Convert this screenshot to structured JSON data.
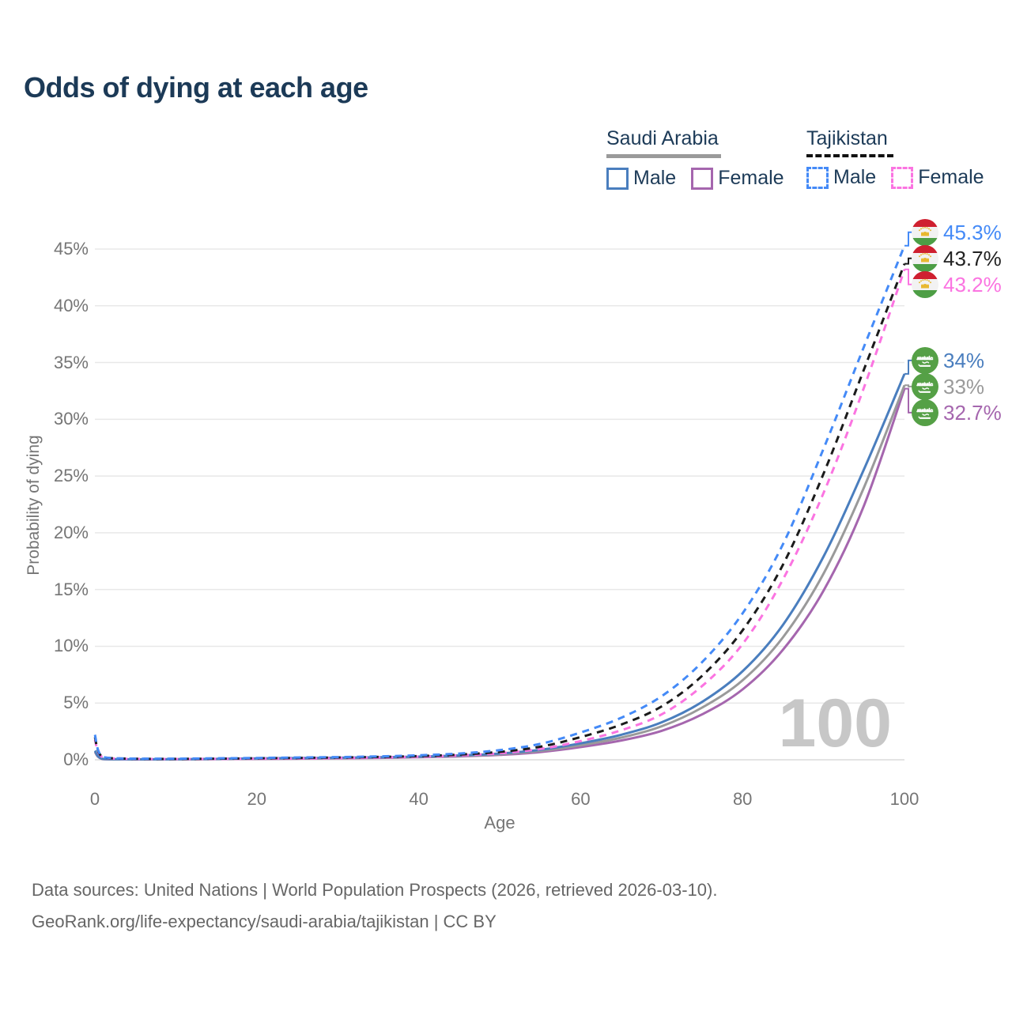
{
  "title": "Odds of dying at each age",
  "watermark_age": "100",
  "legend": {
    "groups": [
      {
        "country": "Saudi Arabia",
        "line_style": "solid",
        "line_color": "#9a9a9a",
        "male_label": "Male",
        "female_label": "Female",
        "male_color": "#4a7ebe",
        "female_color": "#a566ae"
      },
      {
        "country": "Tajikistan",
        "line_style": "dashed",
        "line_color": "#111111",
        "male_label": "Male",
        "female_label": "Female",
        "male_color": "#448af7",
        "female_color": "#fb74e1"
      }
    ]
  },
  "y_axis": {
    "label": "Probability of dying",
    "tick_values": [
      0,
      5,
      10,
      15,
      20,
      25,
      30,
      35,
      40,
      45
    ],
    "tick_suffix": "%"
  },
  "x_axis": {
    "label": "Age",
    "tick_values": [
      0,
      20,
      40,
      60,
      80,
      100
    ]
  },
  "footer": {
    "line1": "Data sources: United Nations | World Population Prospects (2026, retrieved 2026-03-10).",
    "line2": "GeoRank.org/life-expectancy/saudi-arabia/tajikistan | CC BY"
  },
  "colors": {
    "title_navy": "#1c3a57",
    "axis_gray": "#757575",
    "gridline": "#e8e8e8",
    "baseline": "#dcdcdc",
    "watermark_gray": "#c7c7c7",
    "saudi_flag_green": "#55a046",
    "tajik_flag_red": "#cf2030",
    "tajik_flag_green": "#4d9e45",
    "tajik_flag_gold": "#e8b830"
  },
  "chart_data": {
    "type": "line",
    "title": "Odds of dying at each age",
    "xlabel": "Age",
    "ylabel": "Probability of dying",
    "x_range": [
      0,
      100
    ],
    "y_range_percent": [
      0,
      45
    ],
    "grid": "horizontal-only",
    "legend_position": "top-right",
    "ages": [
      0,
      1,
      5,
      10,
      15,
      20,
      25,
      30,
      35,
      40,
      45,
      50,
      55,
      60,
      65,
      70,
      75,
      80,
      85,
      90,
      95,
      100
    ],
    "series": [
      {
        "name": "Tajikistan Male",
        "group": "tajikistan",
        "flag": "tajikistan",
        "color": "#448af7",
        "label_color": "#448af7",
        "dashed": true,
        "end_label": "45.3%",
        "end_value_percent": 45.3,
        "values_percent": [
          2.2,
          0.25,
          0.1,
          0.1,
          0.13,
          0.16,
          0.2,
          0.24,
          0.3,
          0.4,
          0.55,
          0.85,
          1.4,
          2.4,
          3.7,
          5.6,
          8.6,
          12.9,
          19.0,
          27.4,
          36.4,
          45.3
        ]
      },
      {
        "name": "Tajikistan Both sexes",
        "group": "tajikistan",
        "flag": "tajikistan",
        "color": "#1b1b1b",
        "label_color": "#222222",
        "dashed": true,
        "end_label": "43.7%",
        "end_value_percent": 43.7,
        "values_percent": [
          2.0,
          0.22,
          0.09,
          0.08,
          0.1,
          0.13,
          0.16,
          0.2,
          0.25,
          0.33,
          0.46,
          0.7,
          1.15,
          2.0,
          3.1,
          4.7,
          7.4,
          11.4,
          17.2,
          25.2,
          34.4,
          43.7
        ]
      },
      {
        "name": "Tajikistan Female",
        "group": "tajikistan",
        "flag": "tajikistan",
        "color": "#fb74e1",
        "label_color": "#fb74e1",
        "dashed": true,
        "end_label": "43.2%",
        "end_value_percent": 43.2,
        "values_percent": [
          1.8,
          0.2,
          0.08,
          0.07,
          0.08,
          0.1,
          0.12,
          0.15,
          0.2,
          0.27,
          0.38,
          0.58,
          0.95,
          1.65,
          2.6,
          4.0,
          6.5,
          10.2,
          15.9,
          23.5,
          32.8,
          43.2
        ]
      },
      {
        "name": "Saudi Arabia Male",
        "group": "saudi-arabia",
        "flag": "saudi-arabia",
        "color": "#4a7ebe",
        "label_color": "#4a7ebe",
        "dashed": false,
        "end_label": "34%",
        "end_value_percent": 34,
        "values_percent": [
          0.8,
          0.08,
          0.04,
          0.05,
          0.08,
          0.12,
          0.15,
          0.18,
          0.22,
          0.28,
          0.38,
          0.55,
          0.88,
          1.45,
          2.2,
          3.3,
          5.1,
          7.8,
          11.9,
          17.9,
          25.6,
          34.0
        ]
      },
      {
        "name": "Saudi Arabia Both sexes",
        "group": "saudi-arabia",
        "flag": "saudi-arabia",
        "color": "#9a9a9a",
        "label_color": "#9a9a9a",
        "dashed": false,
        "end_label": "33%",
        "end_value_percent": 33,
        "values_percent": [
          0.75,
          0.07,
          0.035,
          0.045,
          0.07,
          0.1,
          0.13,
          0.16,
          0.2,
          0.25,
          0.34,
          0.49,
          0.78,
          1.28,
          1.95,
          2.95,
          4.6,
          7.0,
          10.8,
          16.4,
          24.0,
          33.0
        ]
      },
      {
        "name": "Saudi Arabia Female",
        "group": "saudi-arabia",
        "flag": "saudi-arabia",
        "color": "#a566ae",
        "label_color": "#a566ae",
        "dashed": false,
        "end_label": "32.7%",
        "end_value_percent": 32.7,
        "values_percent": [
          0.7,
          0.06,
          0.03,
          0.04,
          0.06,
          0.08,
          0.1,
          0.13,
          0.17,
          0.22,
          0.3,
          0.43,
          0.68,
          1.12,
          1.7,
          2.55,
          4.0,
          6.2,
          9.7,
          14.9,
          22.4,
          32.7
        ]
      }
    ]
  }
}
